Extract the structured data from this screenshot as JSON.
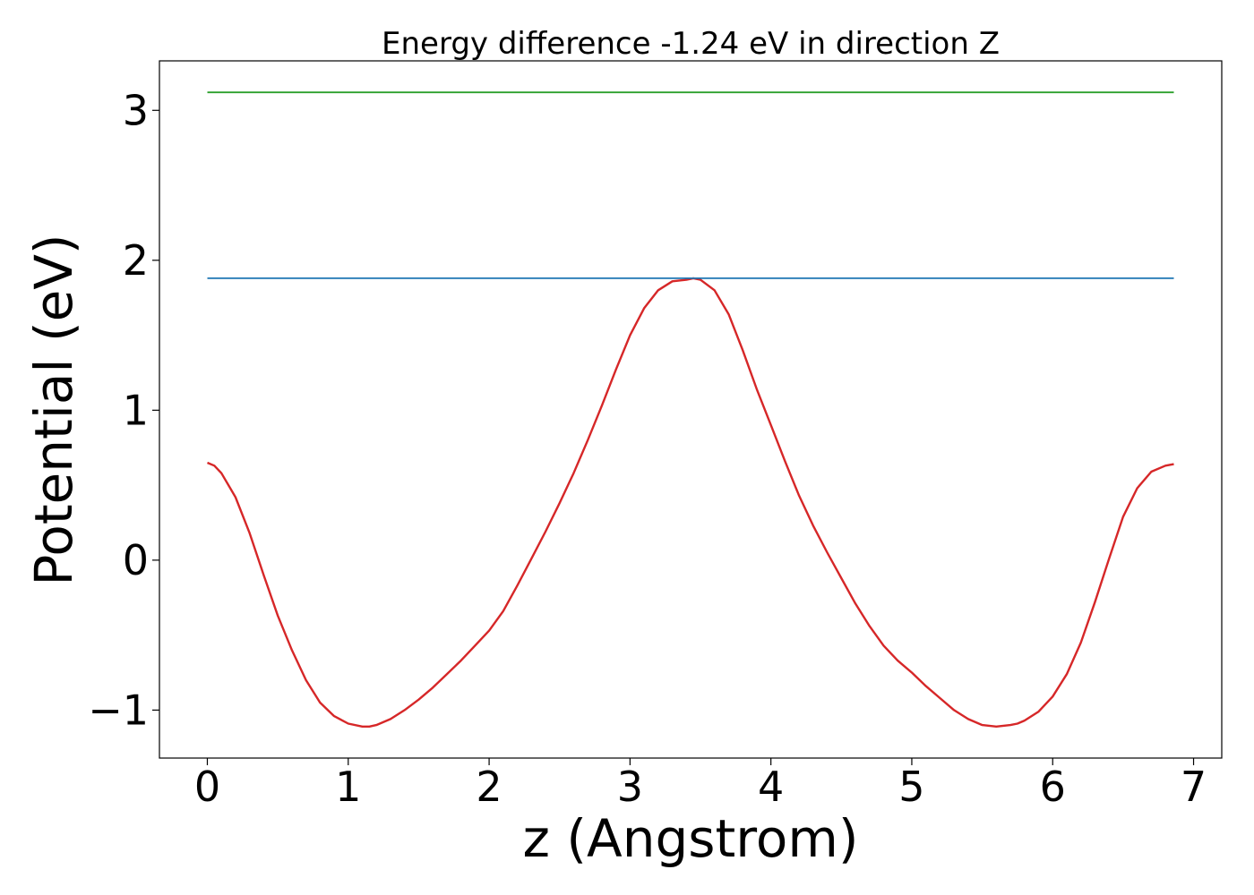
{
  "chart_data": {
    "type": "line",
    "title": "Energy difference -1.24 eV in direction Z",
    "xlabel": "z (Angstrom)",
    "ylabel": "Potential (eV)",
    "xlim": [
      -0.34,
      7.2
    ],
    "ylim": [
      -1.32,
      3.33
    ],
    "x_ticks": [
      0,
      1,
      2,
      3,
      4,
      5,
      6,
      7
    ],
    "x_tick_labels": [
      "0",
      "1",
      "2",
      "3",
      "4",
      "5",
      "6",
      "7"
    ],
    "y_ticks": [
      -1,
      0,
      1,
      2,
      3
    ],
    "y_tick_labels": [
      "−1",
      "0",
      "1",
      "2",
      "3"
    ],
    "grid": false,
    "legend": "none",
    "series": [
      {
        "color": "#d62728",
        "x": [
          0.0,
          0.05,
          0.1,
          0.2,
          0.3,
          0.4,
          0.5,
          0.6,
          0.7,
          0.8,
          0.9,
          1.0,
          1.1,
          1.15,
          1.2,
          1.3,
          1.4,
          1.5,
          1.6,
          1.7,
          1.8,
          1.9,
          2.0,
          2.1,
          2.2,
          2.3,
          2.4,
          2.5,
          2.6,
          2.7,
          2.8,
          2.9,
          3.0,
          3.1,
          3.2,
          3.3,
          3.4,
          3.45,
          3.5,
          3.6,
          3.7,
          3.8,
          3.9,
          4.0,
          4.1,
          4.2,
          4.3,
          4.4,
          4.5,
          4.6,
          4.7,
          4.8,
          4.9,
          5.0,
          5.1,
          5.2,
          5.3,
          5.4,
          5.5,
          5.6,
          5.7,
          5.75,
          5.8,
          5.9,
          6.0,
          6.1,
          6.2,
          6.3,
          6.4,
          6.5,
          6.6,
          6.7,
          6.8,
          6.86
        ],
        "y": [
          0.65,
          0.63,
          0.58,
          0.42,
          0.18,
          -0.1,
          -0.37,
          -0.6,
          -0.8,
          -0.95,
          -1.04,
          -1.09,
          -1.11,
          -1.11,
          -1.1,
          -1.06,
          -1.0,
          -0.93,
          -0.85,
          -0.76,
          -0.67,
          -0.57,
          -0.47,
          -0.34,
          -0.17,
          0.01,
          0.19,
          0.38,
          0.58,
          0.8,
          1.03,
          1.27,
          1.5,
          1.68,
          1.8,
          1.86,
          1.87,
          1.88,
          1.87,
          1.8,
          1.64,
          1.4,
          1.14,
          0.9,
          0.66,
          0.43,
          0.23,
          0.05,
          -0.12,
          -0.29,
          -0.44,
          -0.57,
          -0.67,
          -0.75,
          -0.84,
          -0.92,
          -1.0,
          -1.06,
          -1.1,
          -1.11,
          -1.1,
          -1.09,
          -1.07,
          -1.01,
          -0.91,
          -0.76,
          -0.55,
          -0.28,
          0.01,
          0.29,
          0.48,
          0.59,
          0.63,
          0.64
        ]
      },
      {
        "color": "#1f77b4",
        "x": [
          0.0,
          6.86
        ],
        "y": [
          1.88,
          1.88
        ]
      },
      {
        "color": "#2ca02c",
        "x": [
          0.0,
          6.86
        ],
        "y": [
          3.12,
          3.12
        ]
      }
    ]
  }
}
